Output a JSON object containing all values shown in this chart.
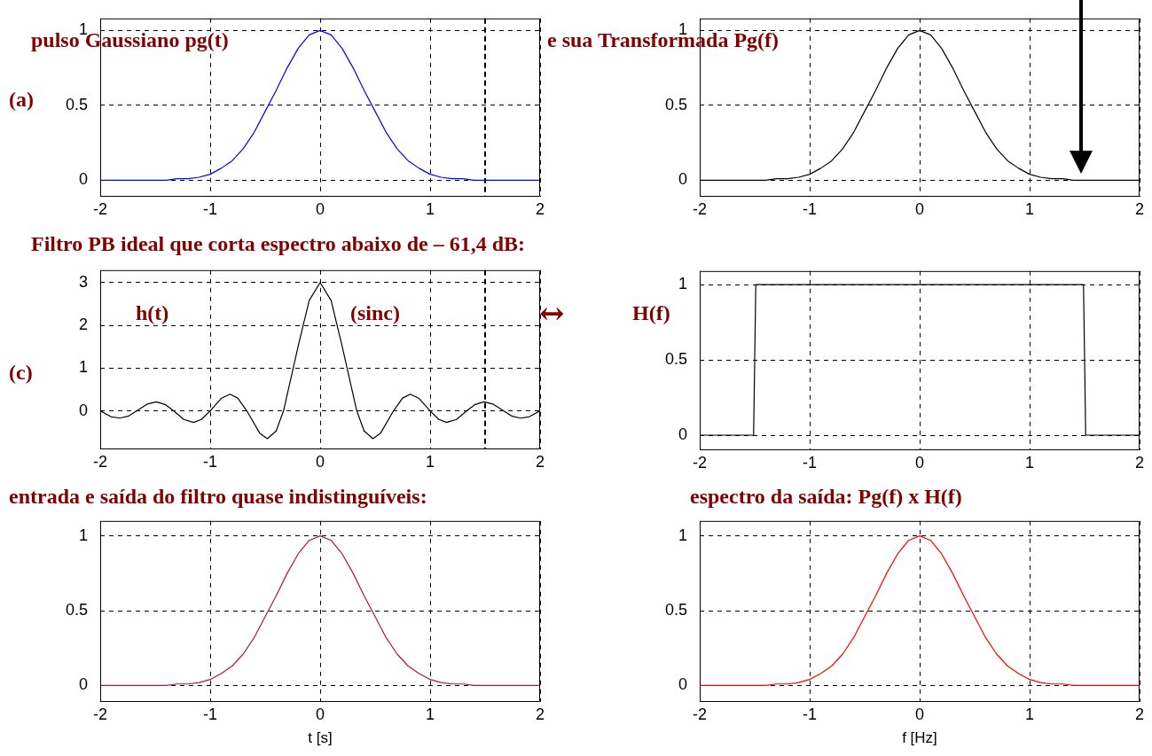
{
  "chart_data": [
    {
      "type": "line",
      "title": "pulso Gaussiano pg(t)",
      "annotations": [
        "(a)"
      ],
      "x": [
        -2,
        -1.9,
        -1.8,
        -1.7,
        -1.6,
        -1.5,
        -1.4,
        -1.3,
        -1.2,
        -1.1,
        -1,
        -0.9,
        -0.8,
        -0.7,
        -0.6,
        -0.5,
        -0.4,
        -0.3,
        -0.2,
        -0.1,
        0,
        0.1,
        0.2,
        0.3,
        0.4,
        0.5,
        0.6,
        0.7,
        0.8,
        0.9,
        1,
        1.1,
        1.2,
        1.3,
        1.4,
        1.5,
        1.6,
        1.7,
        1.8,
        1.9,
        2
      ],
      "series": [
        {
          "color": "#0000ff",
          "values": [
            0,
            0,
            0,
            0,
            0,
            0,
            0,
            0.01,
            0.01,
            0.02,
            0.04,
            0.08,
            0.13,
            0.21,
            0.32,
            0.46,
            0.6,
            0.75,
            0.88,
            0.97,
            1,
            0.97,
            0.88,
            0.75,
            0.6,
            0.46,
            0.32,
            0.21,
            0.13,
            0.08,
            0.04,
            0.02,
            0.01,
            0.01,
            0,
            0,
            0,
            0,
            0,
            0,
            0
          ]
        }
      ],
      "xlim": [
        -2,
        2
      ],
      "xticks": [
        -2,
        -1,
        0,
        1,
        2
      ],
      "ylim": [
        -0.11,
        1.08
      ],
      "yticks": [
        0,
        0.5,
        1
      ],
      "grid": true,
      "legend": false,
      "ref_lines": [
        {
          "axis": "x",
          "value": 1.5,
          "color": "#000000",
          "line_style": "dashed"
        }
      ]
    },
    {
      "type": "line",
      "title": "e sua Transformada Pg(f)",
      "x": [
        -2,
        -1.9,
        -1.8,
        -1.7,
        -1.6,
        -1.5,
        -1.4,
        -1.3,
        -1.2,
        -1.1,
        -1,
        -0.9,
        -0.8,
        -0.7,
        -0.6,
        -0.5,
        -0.4,
        -0.3,
        -0.2,
        -0.1,
        0,
        0.1,
        0.2,
        0.3,
        0.4,
        0.5,
        0.6,
        0.7,
        0.8,
        0.9,
        1,
        1.1,
        1.2,
        1.3,
        1.4,
        1.5,
        1.6,
        1.7,
        1.8,
        1.9,
        2
      ],
      "series": [
        {
          "color": "#000000",
          "values": [
            0,
            0,
            0,
            0,
            0,
            0,
            0,
            0.01,
            0.01,
            0.02,
            0.04,
            0.08,
            0.13,
            0.21,
            0.32,
            0.46,
            0.6,
            0.75,
            0.88,
            0.97,
            1,
            0.97,
            0.88,
            0.75,
            0.6,
            0.46,
            0.32,
            0.21,
            0.13,
            0.08,
            0.04,
            0.02,
            0.01,
            0.01,
            0,
            0,
            0,
            0,
            0,
            0,
            0
          ]
        }
      ],
      "xlim": [
        -2,
        2
      ],
      "xticks": [
        -2,
        -1,
        0,
        1,
        2
      ],
      "ylim": [
        -0.11,
        1.08
      ],
      "yticks": [
        0,
        0.5,
        1
      ],
      "grid": true,
      "legend": false
    },
    {
      "type": "line",
      "title": "Filtro PB ideal que corta espectro abaixo de – 61,4 dB:",
      "annotations": [
        "h(t)",
        "(sinc)",
        "↔",
        "(c)"
      ],
      "x": [
        -2,
        -1.9,
        -1.82,
        -1.74,
        -1.667,
        -1.57,
        -1.49,
        -1.41,
        -1.333,
        -1.24,
        -1.15,
        -1.08,
        -1,
        -0.9,
        -0.82,
        -0.75,
        -0.667,
        -0.55,
        -0.48,
        -0.4,
        -0.333,
        -0.2,
        -0.1,
        0,
        0.1,
        0.2,
        0.333,
        0.4,
        0.48,
        0.55,
        0.667,
        0.75,
        0.82,
        0.9,
        1,
        1.08,
        1.15,
        1.24,
        1.333,
        1.41,
        1.49,
        1.57,
        1.667,
        1.74,
        1.82,
        1.9,
        2
      ],
      "series": [
        {
          "color": "#000000",
          "values": [
            0,
            -0.14,
            -0.17,
            -0.12,
            0,
            0.16,
            0.21,
            0.15,
            0,
            -0.2,
            -0.27,
            -0.2,
            0,
            0.29,
            0.39,
            0.3,
            0,
            -0.52,
            -0.65,
            -0.47,
            0,
            1.51,
            2.58,
            3,
            2.58,
            1.51,
            0,
            -0.47,
            -0.65,
            -0.52,
            0,
            0.3,
            0.39,
            0.29,
            0,
            -0.2,
            -0.27,
            -0.2,
            0,
            0.15,
            0.21,
            0.16,
            0,
            -0.12,
            -0.17,
            -0.14,
            0
          ]
        }
      ],
      "xlim": [
        -2,
        2
      ],
      "xticks": [
        -2,
        -1,
        0,
        1,
        2
      ],
      "ylim": [
        -0.9,
        3.29
      ],
      "yticks": [
        0,
        1,
        2,
        3
      ],
      "grid": true,
      "legend": false,
      "ref_lines": [
        {
          "axis": "x",
          "value": 1.5,
          "color": "#000000",
          "line_style": "dashed"
        }
      ]
    },
    {
      "type": "line",
      "annotations": [
        "H(f)"
      ],
      "x": [
        -2,
        -1.51,
        -1.49,
        1.49,
        1.51,
        2
      ],
      "series": [
        {
          "color": "#000000",
          "values": [
            0,
            0,
            1,
            1,
            0,
            0
          ]
        }
      ],
      "xlim": [
        -2,
        2
      ],
      "xticks": [
        -2,
        -1,
        0,
        1,
        2
      ],
      "ylim": [
        -0.1,
        1.09
      ],
      "yticks": [
        0,
        0.5,
        1
      ],
      "grid": true,
      "legend": false
    },
    {
      "type": "line",
      "title": "entrada e saída do filtro quase indistinguíveis:",
      "xlabel": "t [s]",
      "x": [
        -2,
        -1.9,
        -1.8,
        -1.7,
        -1.6,
        -1.5,
        -1.4,
        -1.3,
        -1.2,
        -1.1,
        -1,
        -0.9,
        -0.8,
        -0.7,
        -0.6,
        -0.5,
        -0.4,
        -0.3,
        -0.2,
        -0.1,
        0,
        0.1,
        0.2,
        0.3,
        0.4,
        0.5,
        0.6,
        0.7,
        0.8,
        0.9,
        1,
        1.1,
        1.2,
        1.3,
        1.4,
        1.5,
        1.6,
        1.7,
        1.8,
        1.9,
        2
      ],
      "series": [
        {
          "color": "#b5124f",
          "values": [
            0,
            0,
            0,
            0,
            0,
            0,
            0,
            0.01,
            0.01,
            0.02,
            0.04,
            0.08,
            0.13,
            0.21,
            0.32,
            0.46,
            0.6,
            0.75,
            0.88,
            0.97,
            1,
            0.97,
            0.88,
            0.75,
            0.6,
            0.46,
            0.32,
            0.21,
            0.13,
            0.08,
            0.04,
            0.02,
            0.01,
            0.01,
            0,
            0,
            0,
            0,
            0,
            0,
            0
          ]
        }
      ],
      "xlim": [
        -2,
        2
      ],
      "xticks": [
        -2,
        -1,
        0,
        1,
        2
      ],
      "ylim": [
        -0.11,
        1.1
      ],
      "yticks": [
        0,
        0.5,
        1
      ],
      "grid": true,
      "legend": false
    },
    {
      "type": "line",
      "title": "espectro da saída: Pg(f) x H(f)",
      "xlabel": "f [Hz]",
      "x": [
        -2,
        -1.9,
        -1.8,
        -1.7,
        -1.6,
        -1.5,
        -1.4,
        -1.3,
        -1.2,
        -1.1,
        -1,
        -0.9,
        -0.8,
        -0.7,
        -0.6,
        -0.5,
        -0.4,
        -0.3,
        -0.2,
        -0.1,
        0,
        0.1,
        0.2,
        0.3,
        0.4,
        0.5,
        0.6,
        0.7,
        0.8,
        0.9,
        1,
        1.1,
        1.2,
        1.3,
        1.4,
        1.5,
        1.6,
        1.7,
        1.8,
        1.9,
        2
      ],
      "series": [
        {
          "color": "#ff0000",
          "values": [
            0,
            0,
            0,
            0,
            0,
            0,
            0,
            0.01,
            0.01,
            0.02,
            0.04,
            0.08,
            0.13,
            0.21,
            0.32,
            0.46,
            0.6,
            0.75,
            0.88,
            0.97,
            1,
            0.97,
            0.88,
            0.75,
            0.6,
            0.46,
            0.32,
            0.21,
            0.13,
            0.08,
            0.04,
            0.02,
            0.01,
            0.01,
            0,
            0,
            0,
            0,
            0,
            0,
            0
          ]
        }
      ],
      "xlim": [
        -2,
        2
      ],
      "xticks": [
        -2,
        -1,
        0,
        1,
        2
      ],
      "ylim": [
        -0.11,
        1.1
      ],
      "yticks": [
        0,
        0.5,
        1
      ],
      "grid": true,
      "legend": false
    }
  ]
}
